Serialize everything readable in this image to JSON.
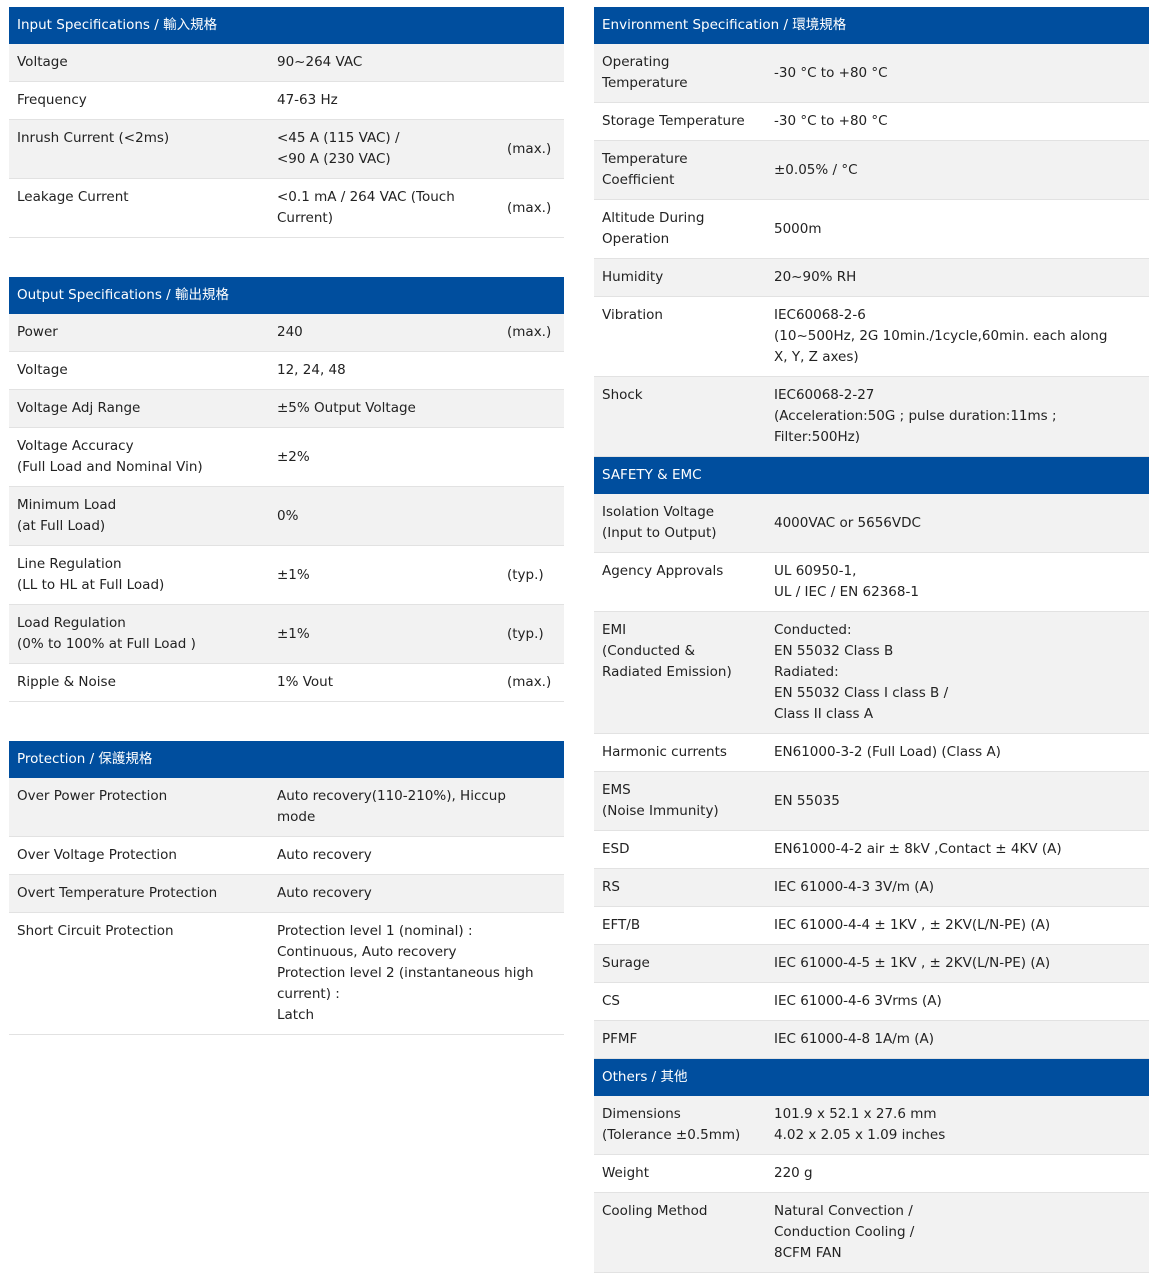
{
  "left": [
    {
      "title": "Input Specifications / 輸入規格",
      "rows": [
        {
          "label": "Voltage",
          "value": "90~264 VAC"
        },
        {
          "label": "Frequency",
          "value": "47-63 Hz"
        },
        {
          "label": "Inrush Current (<2ms)",
          "value": "<45 A  (115 VAC) /\n<90 A  (230 VAC)",
          "note": "(max.)"
        },
        {
          "label": "Leakage Current",
          "value": "<0.1 mA / 264 VAC (Touch\nCurrent)",
          "note": "(max.)"
        }
      ]
    },
    {
      "title": "Output Specifications / 輸出規格",
      "rows": [
        {
          "label": "Power",
          "value": "240",
          "note": "(max.)"
        },
        {
          "label": "Voltage",
          "value": "12, 24, 48"
        },
        {
          "label": "Voltage Adj Range",
          "value": "±5% Output Voltage"
        },
        {
          "label": "Voltage Accuracy\n(Full Load and Nominal Vin)",
          "value": "±2%"
        },
        {
          "label": "Minimum Load\n(at Full Load)",
          "value": "0%"
        },
        {
          "label": "Line Regulation\n(LL to HL at Full Load)",
          "value": "±1%",
          "note": "(typ.)"
        },
        {
          "label": "Load Regulation\n(0% to 100% at Full Load )",
          "value": "±1%",
          "note": "(typ.)"
        },
        {
          "label": "Ripple & Noise",
          "value": "1% Vout",
          "note": "(max.)"
        }
      ]
    },
    {
      "title": "Protection / 保護規格",
      "rows": [
        {
          "label": "Over Power Protection",
          "value": "Auto recovery(110-210%), Hiccup\nmode"
        },
        {
          "label": "Over Voltage Protection",
          "value": "Auto recovery"
        },
        {
          "label": "Overt Temperature Protection",
          "value": "Auto recovery"
        },
        {
          "label": "Short Circuit Protection",
          "value": "Protection level 1 (nominal) :\nContinuous, Auto recovery\nProtection level 2 (instantaneous high\ncurrent) :\nLatch"
        }
      ]
    }
  ],
  "right": [
    {
      "title": "Environment Specification / 環境規格",
      "rows": [
        {
          "label": "Operating\nTemperature",
          "value": "-30 °C to +80 °C"
        },
        {
          "label": "Storage Temperature",
          "value": "-30 °C to +80 °C"
        },
        {
          "label": "Temperature\nCoefficient",
          "value": "±0.05% / °C"
        },
        {
          "label": "Altitude During\nOperation",
          "value": "5000m"
        },
        {
          "label": "Humidity",
          "value": "20~90% RH"
        },
        {
          "label": "Vibration",
          "value": "IEC60068-2-6\n(10~500Hz, 2G 10min./1cycle,60min. each along\nX, Y, Z axes)"
        },
        {
          "label": "Shock",
          "value": "IEC60068-2-27\n(Acceleration:50G ;  pulse duration:11ms ;\nFilter:500Hz)"
        }
      ]
    },
    {
      "title": "SAFETY & EMC",
      "rows": [
        {
          "label": "Isolation Voltage\n(Input to Output)",
          "value": "4000VAC or 5656VDC"
        },
        {
          "label": "Agency Approvals",
          "value": "UL 60950-1,\nUL / IEC / EN 62368-1"
        },
        {
          "label": "EMI\n(Conducted &\nRadiated Emission)",
          "value": "Conducted:\nEN 55032 Class B\nRadiated:\nEN 55032 Class I  class B /\nClass II  class A"
        },
        {
          "label": "Harmonic currents",
          "value": "EN61000-3-2 (Full Load) (Class A)"
        },
        {
          "label": "EMS\n(Noise Immunity)",
          "value": "EN 55035"
        },
        {
          "label": "ESD",
          "value": "EN61000-4-2 air ± 8kV ,Contact ± 4KV (A)"
        },
        {
          "label": "RS",
          "value": "IEC 61000-4-3 3V/m (A)"
        },
        {
          "label": "EFT/B",
          "value": "IEC 61000-4-4 ± 1KV , ± 2KV(L/N-PE) (A)"
        },
        {
          "label": "Surage",
          "value": "IEC 61000-4-5 ± 1KV , ± 2KV(L/N-PE) (A)"
        },
        {
          "label": "CS",
          "value": "IEC 61000-4-6 3Vrms (A)"
        },
        {
          "label": "PFMF",
          "value": "IEC 61000-4-8 1A/m (A)"
        }
      ]
    },
    {
      "title": "Others / 其他",
      "rows": [
        {
          "label": "Dimensions\n(Tolerance ±0.5mm)",
          "value": "101.9 x 52.1 x 27.6 mm\n4.02 x 2.05 x 1.09 inches"
        },
        {
          "label": "Weight",
          "value": "220 g"
        },
        {
          "label": "Cooling Method",
          "value": "Natural Convection /\nConduction Cooling /\n8CFM FAN"
        }
      ]
    }
  ],
  "colors": {
    "header": "#004e9e",
    "stripe": "#f2f2f2"
  }
}
